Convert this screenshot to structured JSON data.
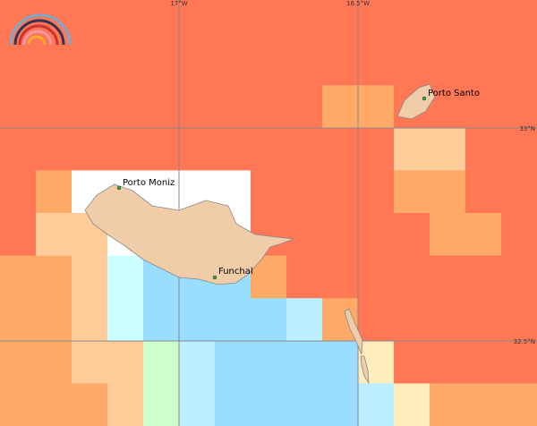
{
  "graticule": {
    "lon": [
      "17°W",
      "16.5°W"
    ],
    "lat": [
      "33°N",
      "32.5°N"
    ]
  },
  "places": [
    "Porto Moniz",
    "Funchal",
    "Porto Santo"
  ]
}
